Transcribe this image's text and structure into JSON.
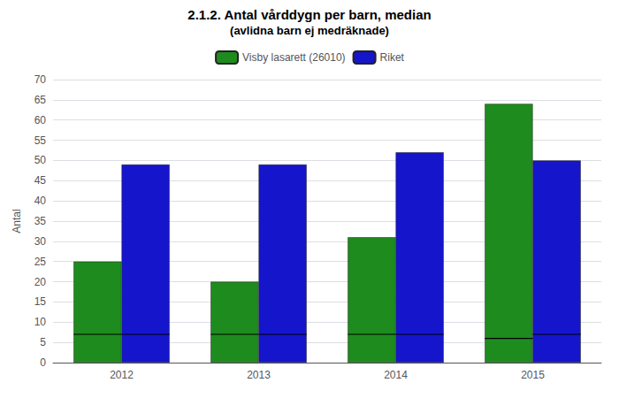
{
  "chart_data": {
    "type": "bar",
    "title": "2.1.2. Antal vårddygn per barn, median",
    "subtitle": "(avlidna barn ej medräknade)",
    "ylabel": "Antal",
    "categories": [
      "2012",
      "2013",
      "2014",
      "2015"
    ],
    "series": [
      {
        "name": "Visby lasarett (26010)",
        "color": "#1e8b1e",
        "values": [
          25,
          20,
          31,
          64
        ],
        "medians": [
          7,
          7,
          7,
          6
        ]
      },
      {
        "name": "Riket",
        "color": "#1515cc",
        "values": [
          49,
          49,
          52,
          50
        ],
        "medians": [
          7,
          7,
          7,
          7
        ]
      }
    ],
    "ylim": [
      0,
      70
    ],
    "yticks": [
      0,
      5,
      10,
      15,
      20,
      25,
      30,
      35,
      40,
      45,
      50,
      55,
      60,
      65,
      70
    ],
    "grid": true,
    "legend": "top"
  }
}
